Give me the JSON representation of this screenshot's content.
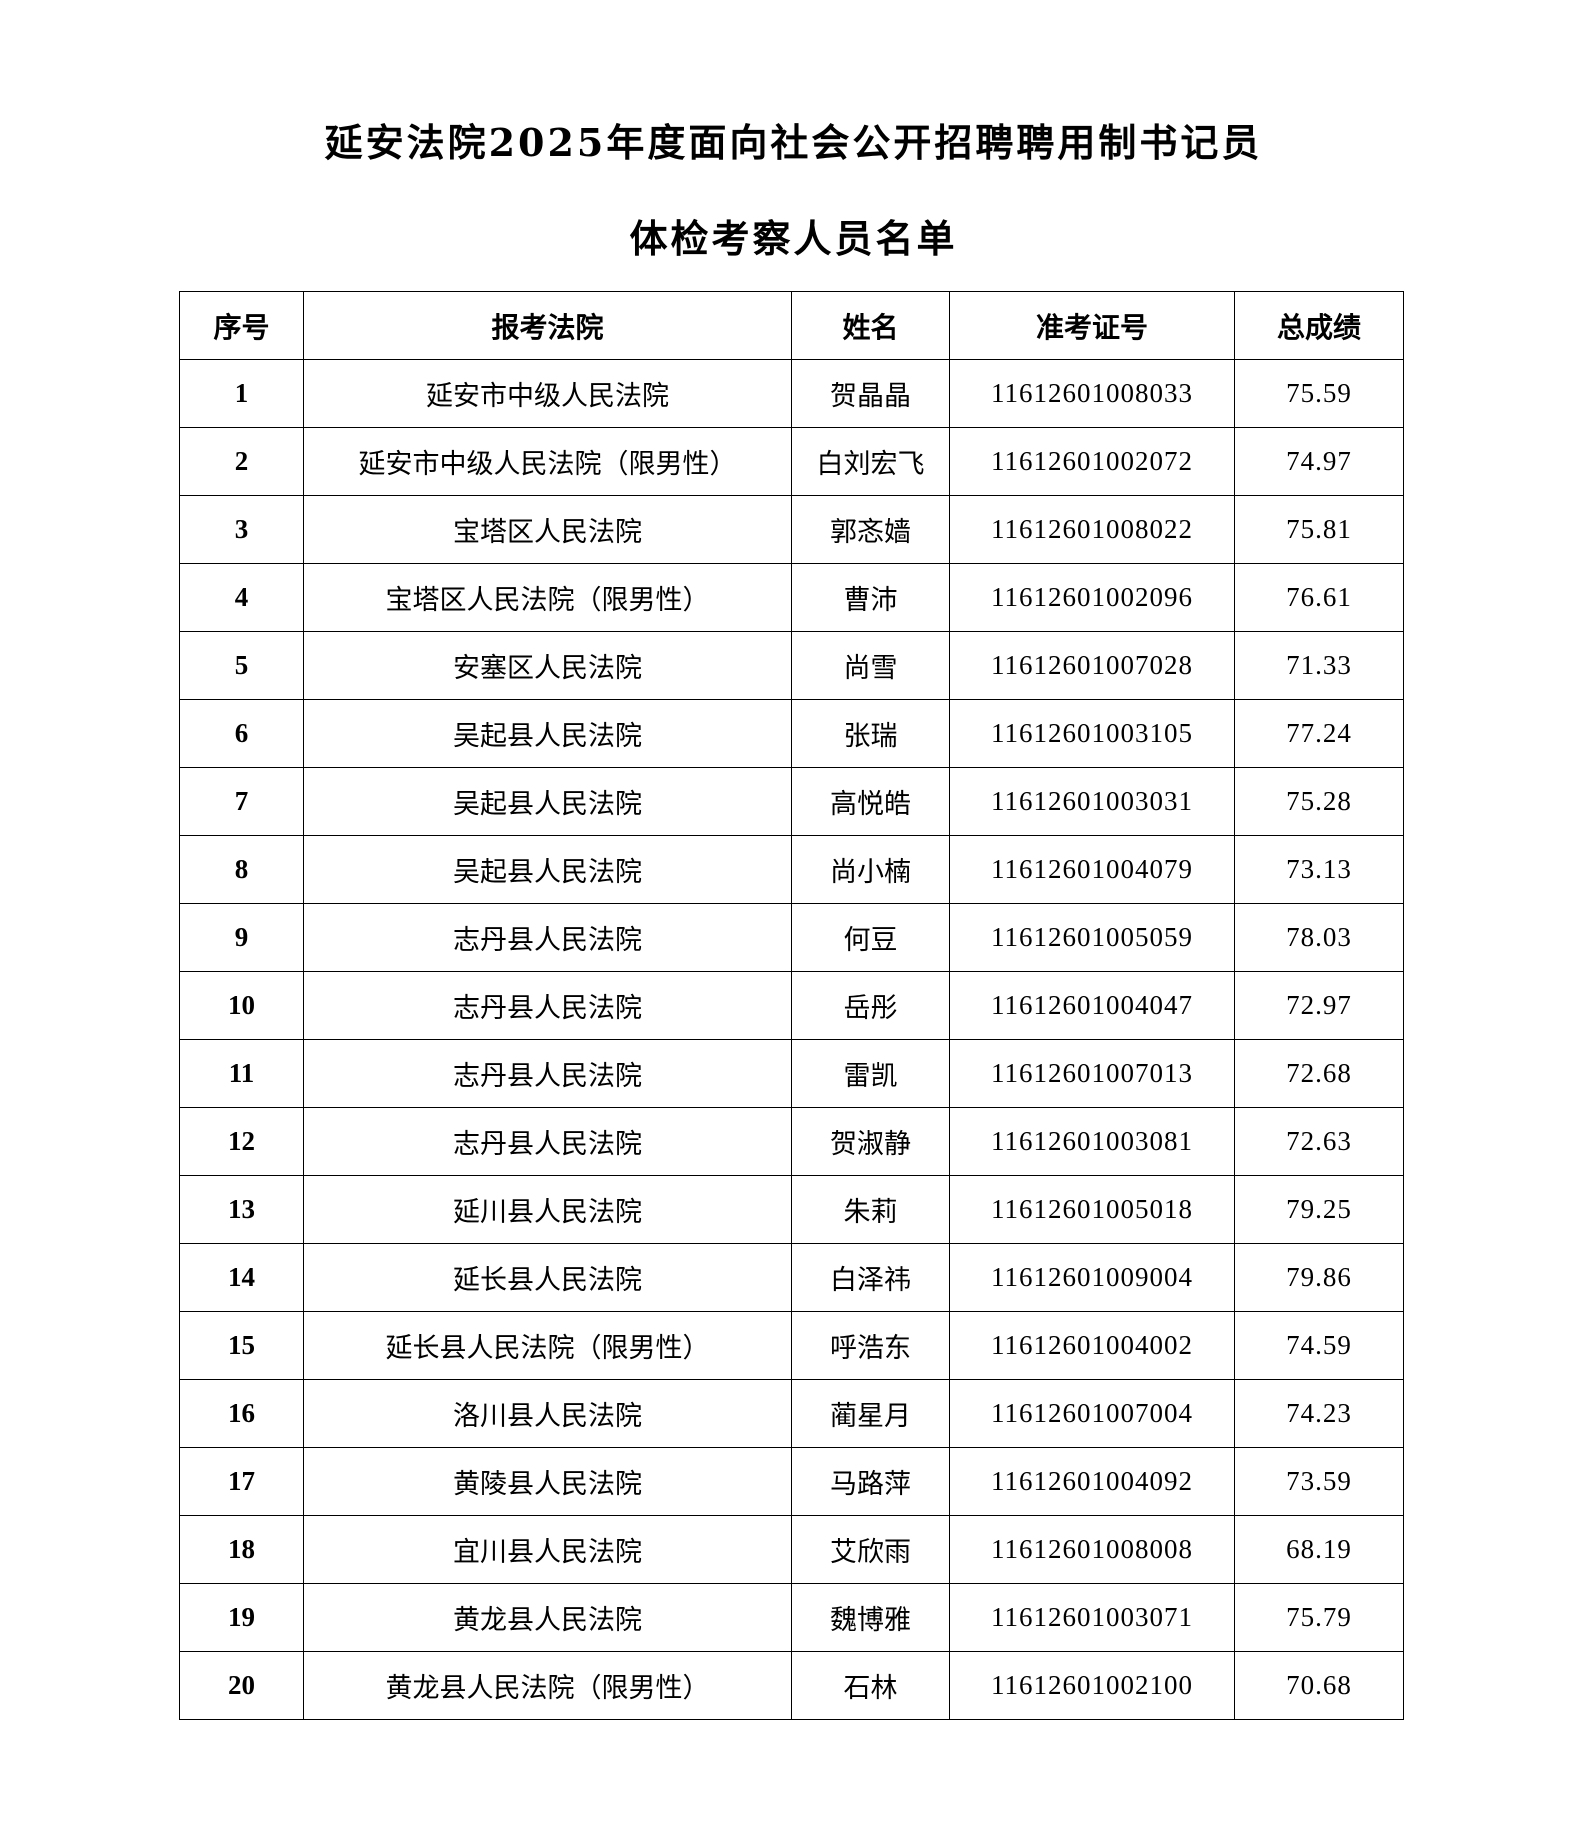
{
  "title_line1": "延安法院2025年度面向社会公开招聘聘用制书记员",
  "title_line2": "体检考察人员名单",
  "table": {
    "headers": [
      "序号",
      "报考法院",
      "姓名",
      "准考证号",
      "总成绩"
    ],
    "rows": [
      [
        "1",
        "延安市中级人民法院",
        "贺晶晶",
        "11612601008033",
        "75.59"
      ],
      [
        "2",
        "延安市中级人民法院（限男性）",
        "白刘宏飞",
        "11612601002072",
        "74.97"
      ],
      [
        "3",
        "宝塔区人民法院",
        "郭忞嫱",
        "11612601008022",
        "75.81"
      ],
      [
        "4",
        "宝塔区人民法院（限男性）",
        "曹沛",
        "11612601002096",
        "76.61"
      ],
      [
        "5",
        "安塞区人民法院",
        "尚雪",
        "11612601007028",
        "71.33"
      ],
      [
        "6",
        "吴起县人民法院",
        "张瑞",
        "11612601003105",
        "77.24"
      ],
      [
        "7",
        "吴起县人民法院",
        "高悦皓",
        "11612601003031",
        "75.28"
      ],
      [
        "8",
        "吴起县人民法院",
        "尚小楠",
        "11612601004079",
        "73.13"
      ],
      [
        "9",
        "志丹县人民法院",
        "何豆",
        "11612601005059",
        "78.03"
      ],
      [
        "10",
        "志丹县人民法院",
        "岳彤",
        "11612601004047",
        "72.97"
      ],
      [
        "11",
        "志丹县人民法院",
        "雷凯",
        "11612601007013",
        "72.68"
      ],
      [
        "12",
        "志丹县人民法院",
        "贺淑静",
        "11612601003081",
        "72.63"
      ],
      [
        "13",
        "延川县人民法院",
        "朱莉",
        "11612601005018",
        "79.25"
      ],
      [
        "14",
        "延长县人民法院",
        "白泽祎",
        "11612601009004",
        "79.86"
      ],
      [
        "15",
        "延长县人民法院（限男性）",
        "呼浩东",
        "11612601004002",
        "74.59"
      ],
      [
        "16",
        "洛川县人民法院",
        "蔺星月",
        "11612601007004",
        "74.23"
      ],
      [
        "17",
        "黄陵县人民法院",
        "马路萍",
        "11612601004092",
        "73.59"
      ],
      [
        "18",
        "宜川县人民法院",
        "艾欣雨",
        "11612601008008",
        "68.19"
      ],
      [
        "19",
        "黄龙县人民法院",
        "魏博雅",
        "11612601003071",
        "75.79"
      ],
      [
        "20",
        "黄龙县人民法院（限男性）",
        "石林",
        "11612601002100",
        "70.68"
      ]
    ]
  }
}
